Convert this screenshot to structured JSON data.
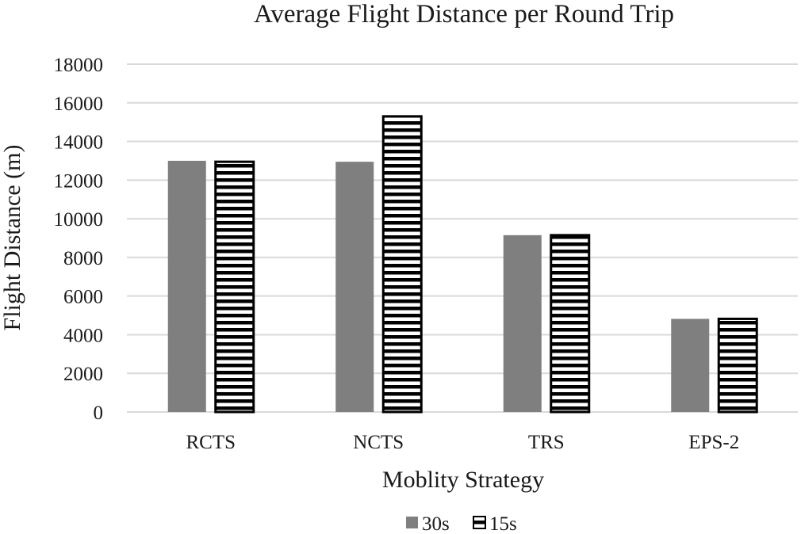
{
  "chart_data": {
    "type": "bar",
    "title": "Average Flight Distance per Round Trip",
    "xlabel": "Moblity Strategy",
    "ylabel": "Flight Distance (m)",
    "categories": [
      "RCTS",
      "NCTS",
      "TRS",
      "EPS-2"
    ],
    "ylim": [
      0,
      18000
    ],
    "yticks": [
      0,
      2000,
      4000,
      6000,
      8000,
      10000,
      12000,
      14000,
      16000,
      18000
    ],
    "grid": true,
    "legend_position": "bottom",
    "series": [
      {
        "name": "30s",
        "values": [
          13000,
          12950,
          9150,
          4820
        ],
        "color": "#7f7f7f",
        "pattern": "solid"
      },
      {
        "name": "15s",
        "values": [
          12950,
          15300,
          9150,
          4820
        ],
        "color": "#000000",
        "pattern": "horizontal-stripes"
      }
    ]
  }
}
